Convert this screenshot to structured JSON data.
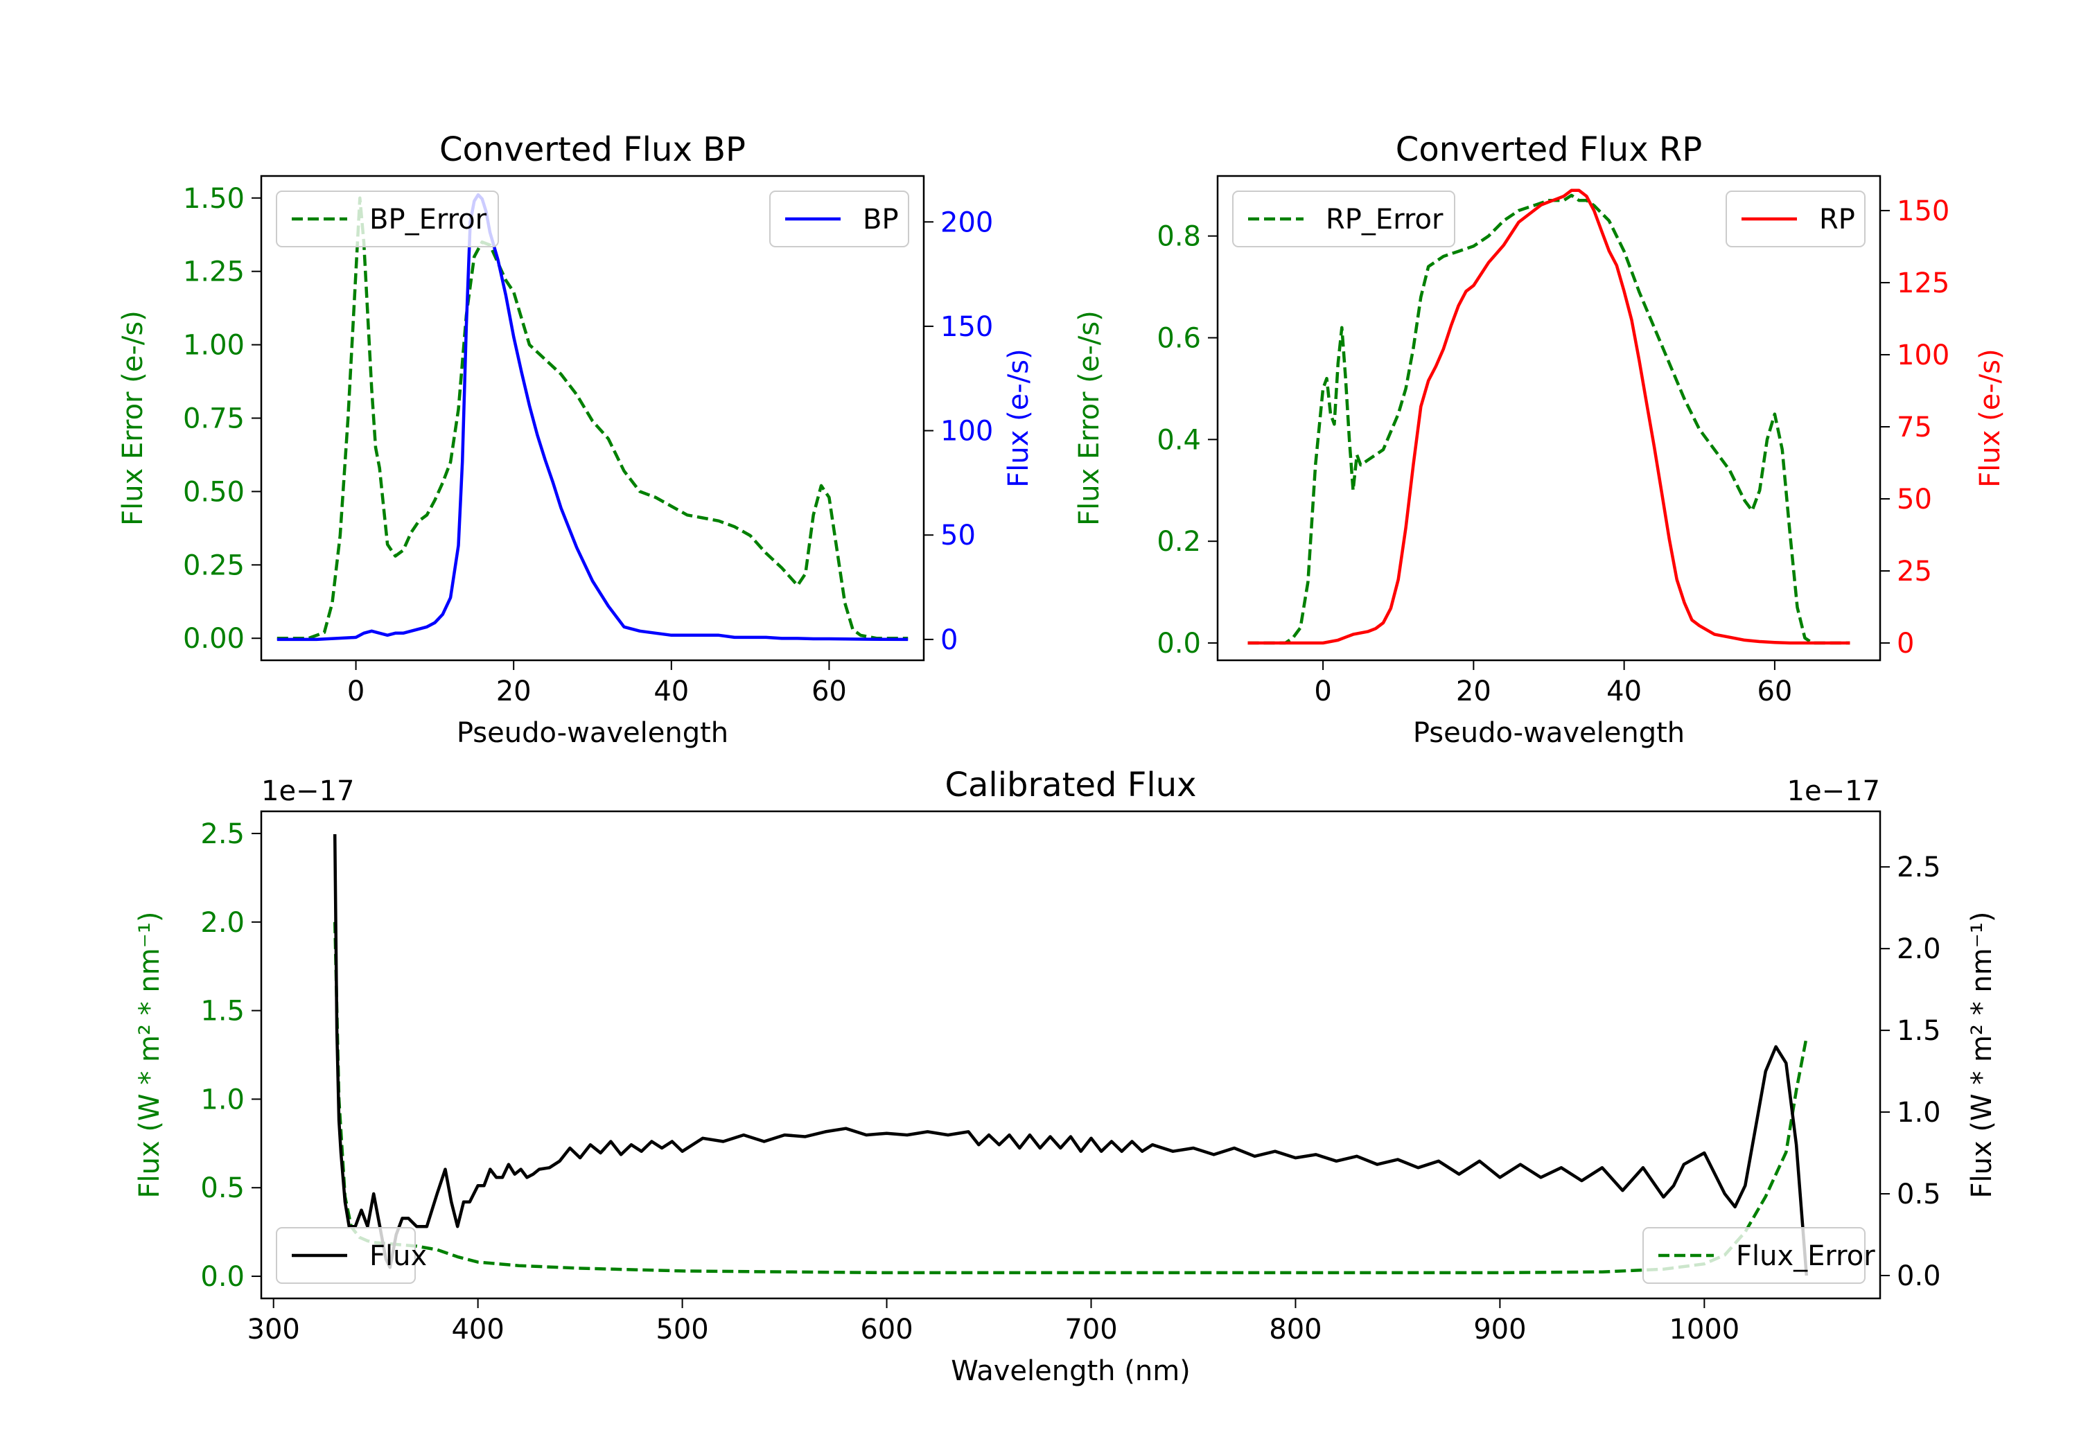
{
  "colors": {
    "green": "#008000",
    "blue": "#0000ff",
    "red": "#ff0000",
    "black": "#000000"
  },
  "chart_data": [
    {
      "id": "bp",
      "type": "line",
      "title": "Converted Flux BP",
      "xlabel": "Pseudo-wavelength",
      "ylabel_left": "Flux Error (e-/s)",
      "ylabel_right": "Flux (e-/s)",
      "xlim": [
        -12,
        72
      ],
      "ylim_left": [
        -0.075,
        1.575
      ],
      "ylim_right": [
        -10,
        222
      ],
      "xticks": [
        {
          "v": 0,
          "label": "0"
        },
        {
          "v": 20,
          "label": "20"
        },
        {
          "v": 40,
          "label": "40"
        },
        {
          "v": 60,
          "label": "60"
        }
      ],
      "yticks_left": [
        {
          "v": 0,
          "label": "0.00"
        },
        {
          "v": 0.25,
          "label": "0.25"
        },
        {
          "v": 0.5,
          "label": "0.50"
        },
        {
          "v": 0.75,
          "label": "0.75"
        },
        {
          "v": 1.0,
          "label": "1.00"
        },
        {
          "v": 1.25,
          "label": "1.25"
        },
        {
          "v": 1.5,
          "label": "1.50"
        }
      ],
      "yticks_right": [
        {
          "v": 0,
          "label": "0"
        },
        {
          "v": 50,
          "label": "50"
        },
        {
          "v": 100,
          "label": "100"
        },
        {
          "v": 150,
          "label": "150"
        },
        {
          "v": 200,
          "label": "200"
        }
      ],
      "left_tick_color": "#008000",
      "right_tick_color": "#0000ff",
      "series": [
        {
          "name": "BP_Error",
          "axis": "left",
          "color": "#008000",
          "dashed": true,
          "legend": "upper left",
          "x": [
            -10,
            -6,
            -4,
            -3,
            -2,
            -1,
            0,
            0.5,
            1,
            2,
            2.5,
            3,
            3.5,
            4,
            5,
            6,
            7,
            8,
            9,
            10,
            11,
            12,
            13,
            14,
            15,
            16,
            17,
            18,
            19,
            20,
            22,
            24,
            26,
            28,
            30,
            32,
            34,
            36,
            38,
            40,
            42,
            44,
            46,
            48,
            50,
            52,
            54,
            56,
            57,
            58,
            59,
            60,
            61,
            62,
            63,
            64,
            66,
            68,
            70
          ],
          "y": [
            0,
            0,
            0.02,
            0.12,
            0.35,
            0.75,
            1.25,
            1.5,
            1.35,
            0.85,
            0.65,
            0.58,
            0.45,
            0.32,
            0.28,
            0.3,
            0.36,
            0.4,
            0.42,
            0.47,
            0.53,
            0.6,
            0.78,
            1.1,
            1.3,
            1.35,
            1.34,
            1.28,
            1.22,
            1.18,
            1.0,
            0.95,
            0.9,
            0.83,
            0.74,
            0.68,
            0.57,
            0.5,
            0.48,
            0.45,
            0.42,
            0.41,
            0.4,
            0.38,
            0.35,
            0.29,
            0.24,
            0.18,
            0.22,
            0.42,
            0.52,
            0.48,
            0.3,
            0.12,
            0.03,
            0.01,
            0,
            0,
            0
          ]
        },
        {
          "name": "BP",
          "axis": "right",
          "color": "#0000ff",
          "dashed": false,
          "legend": "upper right",
          "x": [
            -10,
            -5,
            0,
            1,
            2,
            3,
            4,
            5,
            6,
            7,
            8,
            9,
            10,
            11,
            12,
            13,
            13.5,
            14,
            14.5,
            15,
            15.5,
            16,
            16.5,
            17,
            18,
            19,
            20,
            21,
            22,
            23,
            24,
            25,
            26,
            28,
            30,
            32,
            34,
            36,
            38,
            40,
            42,
            44,
            46,
            48,
            50,
            52,
            54,
            56,
            58,
            60,
            62,
            65,
            70
          ],
          "y": [
            0,
            0,
            1,
            3,
            4,
            3,
            2,
            3,
            3,
            4,
            5,
            6,
            8,
            12,
            20,
            45,
            85,
            150,
            200,
            210,
            213,
            211,
            205,
            195,
            182,
            165,
            145,
            128,
            112,
            98,
            86,
            75,
            63,
            44,
            28,
            16,
            6,
            4,
            3,
            2,
            2,
            2,
            2,
            1,
            1,
            1,
            0.5,
            0.5,
            0.3,
            0.3,
            0.2,
            0.1,
            0
          ]
        }
      ]
    },
    {
      "id": "rp",
      "type": "line",
      "title": "Converted Flux RP",
      "xlabel": "Pseudo-wavelength",
      "ylabel_left": "Flux Error (e-/s)",
      "ylabel_right": "Flux (e-/s)",
      "xlim": [
        -14,
        74
      ],
      "ylim_left": [
        -0.034,
        0.918
      ],
      "ylim_right": [
        -6,
        162
      ],
      "xticks": [
        {
          "v": 0,
          "label": "0"
        },
        {
          "v": 20,
          "label": "20"
        },
        {
          "v": 40,
          "label": "40"
        },
        {
          "v": 60,
          "label": "60"
        }
      ],
      "yticks_left": [
        {
          "v": 0,
          "label": "0.0"
        },
        {
          "v": 0.2,
          "label": "0.2"
        },
        {
          "v": 0.4,
          "label": "0.4"
        },
        {
          "v": 0.6,
          "label": "0.6"
        },
        {
          "v": 0.8,
          "label": "0.8"
        }
      ],
      "yticks_right": [
        {
          "v": 0,
          "label": "0"
        },
        {
          "v": 25,
          "label": "25"
        },
        {
          "v": 50,
          "label": "50"
        },
        {
          "v": 75,
          "label": "75"
        },
        {
          "v": 100,
          "label": "100"
        },
        {
          "v": 125,
          "label": "125"
        },
        {
          "v": 150,
          "label": "150"
        }
      ],
      "left_tick_color": "#008000",
      "right_tick_color": "#ff0000",
      "series": [
        {
          "name": "RP_Error",
          "axis": "left",
          "color": "#008000",
          "dashed": true,
          "legend": "upper left",
          "x": [
            -10,
            -5,
            -4,
            -3,
            -2,
            -1,
            0,
            0.5,
            1,
            1.5,
            2,
            2.5,
            3,
            3.5,
            4,
            4.5,
            5,
            6,
            8,
            10,
            11,
            12,
            13,
            14,
            15,
            16,
            18,
            20,
            22,
            24,
            26,
            28,
            30,
            32,
            33,
            34,
            35,
            36,
            38,
            40,
            42,
            44,
            46,
            48,
            50,
            52,
            54,
            55,
            56,
            57,
            58,
            59,
            60,
            61,
            62,
            63,
            64,
            65,
            70
          ],
          "y": [
            0,
            0,
            0.01,
            0.03,
            0.12,
            0.35,
            0.5,
            0.52,
            0.45,
            0.43,
            0.55,
            0.62,
            0.52,
            0.4,
            0.3,
            0.37,
            0.35,
            0.36,
            0.38,
            0.45,
            0.5,
            0.58,
            0.68,
            0.74,
            0.75,
            0.76,
            0.77,
            0.78,
            0.8,
            0.83,
            0.85,
            0.86,
            0.87,
            0.87,
            0.88,
            0.87,
            0.87,
            0.86,
            0.83,
            0.77,
            0.69,
            0.62,
            0.55,
            0.48,
            0.42,
            0.38,
            0.34,
            0.31,
            0.28,
            0.26,
            0.3,
            0.4,
            0.45,
            0.38,
            0.22,
            0.07,
            0.01,
            0,
            0
          ]
        },
        {
          "name": "RP",
          "axis": "right",
          "color": "#ff0000",
          "dashed": false,
          "legend": "upper right",
          "x": [
            -10,
            -5,
            0,
            2,
            3,
            4,
            6,
            7,
            8,
            9,
            10,
            11,
            12,
            13,
            14,
            15,
            16,
            17,
            18,
            19,
            20,
            22,
            24,
            26,
            28,
            29,
            30,
            31,
            32,
            33,
            34,
            35,
            36,
            37,
            38,
            39,
            40,
            41,
            42,
            43,
            44,
            45,
            46,
            47,
            48,
            49,
            50,
            52,
            54,
            56,
            58,
            60,
            62,
            65,
            70
          ],
          "y": [
            0,
            0,
            0,
            1,
            2,
            3,
            4,
            5,
            7,
            12,
            22,
            40,
            62,
            82,
            91,
            96,
            102,
            110,
            117,
            122,
            124,
            132,
            138,
            146,
            150,
            152,
            153,
            154,
            155,
            157,
            157,
            155,
            150,
            143,
            136,
            131,
            122,
            112,
            98,
            83,
            68,
            52,
            36,
            22,
            14,
            8,
            6,
            3,
            2,
            1,
            0.5,
            0.2,
            0,
            0,
            0
          ]
        }
      ]
    },
    {
      "id": "cal",
      "type": "line",
      "title": "Calibrated Flux",
      "xlabel": "Wavelength (nm)",
      "ylabel_left": "Flux (W * m² * nm⁻¹)",
      "ylabel_right": "Flux (W * m² * nm⁻¹)",
      "offset_left": "1e−17",
      "offset_right": "1e−17",
      "xlim": [
        294,
        1086
      ],
      "ylim_left": [
        -0.125,
        2.625
      ],
      "ylim_right": [
        -0.14,
        2.84
      ],
      "xticks": [
        {
          "v": 300,
          "label": "300"
        },
        {
          "v": 400,
          "label": "400"
        },
        {
          "v": 500,
          "label": "500"
        },
        {
          "v": 600,
          "label": "600"
        },
        {
          "v": 700,
          "label": "700"
        },
        {
          "v": 800,
          "label": "800"
        },
        {
          "v": 900,
          "label": "900"
        },
        {
          "v": 1000,
          "label": "1000"
        }
      ],
      "yticks_left": [
        {
          "v": 0,
          "label": "0.0"
        },
        {
          "v": 0.5,
          "label": "0.5"
        },
        {
          "v": 1.0,
          "label": "1.0"
        },
        {
          "v": 1.5,
          "label": "1.5"
        },
        {
          "v": 2.0,
          "label": "2.0"
        },
        {
          "v": 2.5,
          "label": "2.5"
        }
      ],
      "yticks_right": [
        {
          "v": 0,
          "label": "0.0"
        },
        {
          "v": 0.5,
          "label": "0.5"
        },
        {
          "v": 1.0,
          "label": "1.0"
        },
        {
          "v": 1.5,
          "label": "1.5"
        },
        {
          "v": 2.0,
          "label": "2.0"
        },
        {
          "v": 2.5,
          "label": "2.5"
        }
      ],
      "left_tick_color": "#008000",
      "right_tick_color": "#000000",
      "series": [
        {
          "name": "Flux_Error",
          "axis": "left",
          "color": "#008000",
          "dashed": true,
          "legend": "lower right",
          "x": [
            330,
            332,
            335,
            338,
            342,
            346,
            350,
            360,
            370,
            380,
            390,
            400,
            420,
            450,
            500,
            550,
            600,
            650,
            700,
            750,
            800,
            850,
            900,
            950,
            980,
            1000,
            1010,
            1020,
            1030,
            1040,
            1045,
            1050
          ],
          "y": [
            2.0,
            1.0,
            0.45,
            0.28,
            0.22,
            0.2,
            0.19,
            0.18,
            0.17,
            0.15,
            0.11,
            0.08,
            0.06,
            0.045,
            0.03,
            0.025,
            0.02,
            0.02,
            0.02,
            0.02,
            0.02,
            0.02,
            0.02,
            0.025,
            0.04,
            0.07,
            0.12,
            0.25,
            0.45,
            0.7,
            1.05,
            1.35
          ]
        },
        {
          "name": "Flux",
          "axis": "right",
          "color": "#000000",
          "dashed": false,
          "legend": "lower left",
          "x": [
            330,
            331,
            332,
            333,
            335,
            337,
            340,
            343,
            346,
            349,
            352,
            355,
            357,
            360,
            363,
            366,
            370,
            375,
            380,
            384,
            387,
            390,
            393,
            396,
            400,
            403,
            406,
            409,
            412,
            415,
            418,
            421,
            424,
            427,
            430,
            435,
            440,
            445,
            450,
            455,
            460,
            465,
            470,
            475,
            480,
            485,
            490,
            495,
            500,
            510,
            520,
            530,
            540,
            550,
            560,
            570,
            580,
            590,
            600,
            610,
            620,
            630,
            640,
            645,
            650,
            655,
            660,
            665,
            670,
            675,
            680,
            685,
            690,
            695,
            700,
            705,
            710,
            715,
            720,
            725,
            730,
            740,
            750,
            760,
            770,
            780,
            790,
            800,
            810,
            820,
            830,
            840,
            850,
            860,
            870,
            880,
            890,
            900,
            910,
            920,
            930,
            940,
            950,
            960,
            970,
            980,
            985,
            990,
            1000,
            1010,
            1015,
            1020,
            1025,
            1030,
            1035,
            1040,
            1045,
            1050
          ],
          "y": [
            2.7,
            1.5,
            0.95,
            0.75,
            0.45,
            0.3,
            0.3,
            0.4,
            0.3,
            0.5,
            0.3,
            0.1,
            0.05,
            0.25,
            0.35,
            0.35,
            0.3,
            0.3,
            0.5,
            0.65,
            0.45,
            0.3,
            0.45,
            0.45,
            0.55,
            0.55,
            0.65,
            0.6,
            0.6,
            0.68,
            0.62,
            0.65,
            0.6,
            0.62,
            0.65,
            0.66,
            0.7,
            0.78,
            0.72,
            0.8,
            0.75,
            0.82,
            0.74,
            0.8,
            0.76,
            0.82,
            0.78,
            0.82,
            0.76,
            0.84,
            0.82,
            0.86,
            0.82,
            0.86,
            0.85,
            0.88,
            0.9,
            0.86,
            0.87,
            0.86,
            0.88,
            0.86,
            0.88,
            0.8,
            0.86,
            0.8,
            0.86,
            0.78,
            0.86,
            0.78,
            0.85,
            0.78,
            0.85,
            0.76,
            0.84,
            0.76,
            0.82,
            0.76,
            0.82,
            0.76,
            0.8,
            0.76,
            0.78,
            0.74,
            0.78,
            0.73,
            0.76,
            0.72,
            0.74,
            0.7,
            0.73,
            0.68,
            0.71,
            0.66,
            0.7,
            0.62,
            0.7,
            0.6,
            0.68,
            0.6,
            0.66,
            0.58,
            0.66,
            0.52,
            0.66,
            0.48,
            0.55,
            0.68,
            0.75,
            0.5,
            0.42,
            0.55,
            0.9,
            1.25,
            1.4,
            1.3,
            0.8,
            0.0
          ]
        }
      ]
    }
  ]
}
